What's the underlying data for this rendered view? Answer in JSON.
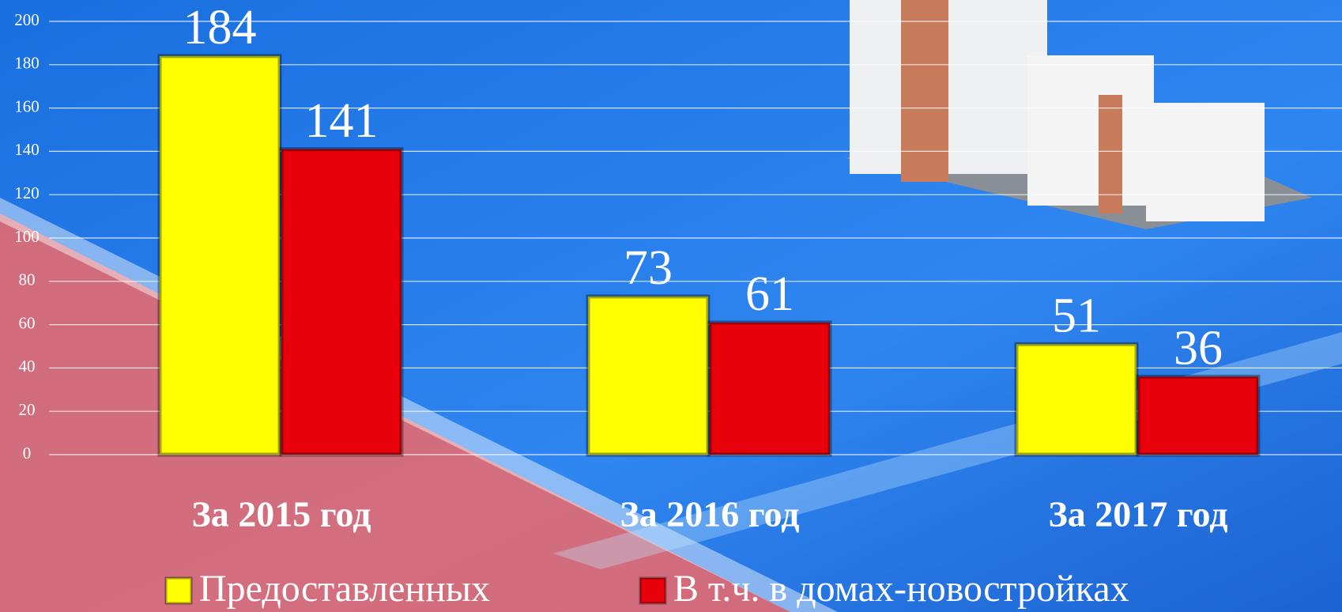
{
  "chart_data": {
    "type": "bar",
    "categories": [
      "За 2015 год",
      "За 2016 год",
      "За 2017 год"
    ],
    "series": [
      {
        "name": "Предоставленных",
        "color": "#ffff00",
        "values": [
          184,
          73,
          51
        ]
      },
      {
        "name": "В т.ч. в домах-новостройках",
        "color": "#e8000a",
        "values": [
          141,
          61,
          36
        ]
      }
    ],
    "ylim": [
      0,
      200
    ],
    "yticks": [
      0,
      20,
      40,
      60,
      80,
      100,
      120,
      140,
      160,
      180,
      200
    ],
    "grid": true
  }
}
